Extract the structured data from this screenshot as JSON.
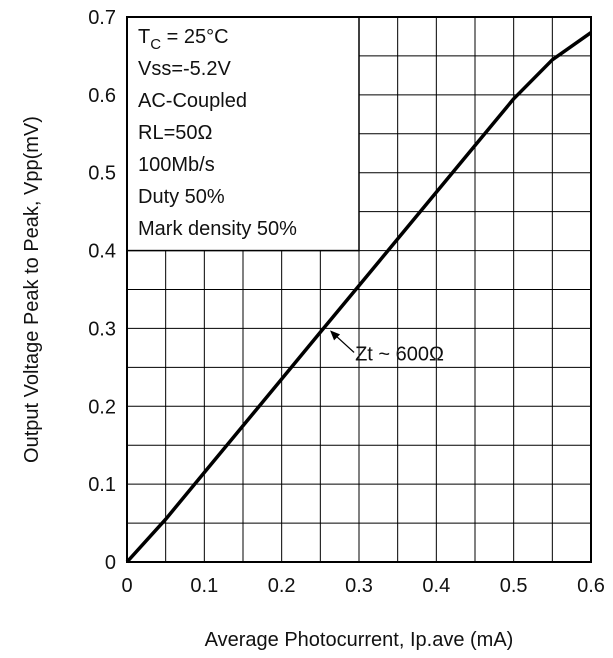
{
  "chart_data": {
    "type": "line",
    "xlabel": "Average Photocurrent, Ip.ave (mA)",
    "ylabel": "Output Voltage Peak to Peak, Vpp(mV)",
    "xlim": [
      0,
      0.6
    ],
    "ylim": [
      0,
      0.7
    ],
    "x_ticks": [
      "0",
      "0.1",
      "0.2",
      "0.3",
      "0.4",
      "0.5",
      "0.6"
    ],
    "y_ticks": [
      "0",
      "0.1",
      "0.2",
      "0.3",
      "0.4",
      "0.5",
      "0.6",
      "0.7"
    ],
    "grid": true,
    "grid_minor_x": 0.05,
    "grid_minor_y": 0.05,
    "conditions": {
      "tc_main": "T",
      "tc_sub": "C",
      "tc_rest": " = 25°C",
      "lines": [
        "Vss=-5.2V",
        "AC-Coupled",
        "RL=50Ω",
        "100Mb/s",
        "Duty 50%",
        "Mark density 50%"
      ]
    },
    "annotation": {
      "text": "Zt ~ 600Ω",
      "x": 0.26,
      "y": 0.3
    },
    "series": [
      {
        "x": [
          0.0,
          0.05,
          0.1,
          0.15,
          0.2,
          0.25,
          0.3,
          0.35,
          0.4,
          0.45,
          0.5,
          0.55,
          0.6
        ],
        "y": [
          0.0,
          0.055,
          0.115,
          0.175,
          0.235,
          0.295,
          0.355,
          0.415,
          0.475,
          0.535,
          0.595,
          0.645,
          0.68
        ]
      }
    ],
    "colors": {
      "line": "#000000",
      "grid": "#000000"
    }
  }
}
